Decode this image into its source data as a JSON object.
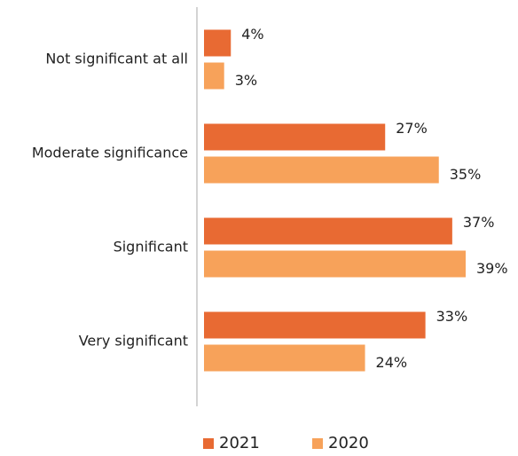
{
  "chart_data": {
    "type": "bar",
    "orientation": "horizontal",
    "categories": [
      "Not significant at all",
      "Moderate significance",
      "Significant",
      "Very significant"
    ],
    "series": [
      {
        "name": "2021",
        "color": "#e86a33",
        "values": [
          4,
          27,
          37,
          33
        ],
        "value_labels": [
          "4%",
          "27%",
          "37%",
          "33%"
        ]
      },
      {
        "name": "2020",
        "color": "#f7a25a",
        "values": [
          3,
          35,
          39,
          24
        ],
        "value_labels": [
          "3%",
          "35%",
          "39%",
          "24%"
        ]
      }
    ],
    "legend": "bottom"
  }
}
